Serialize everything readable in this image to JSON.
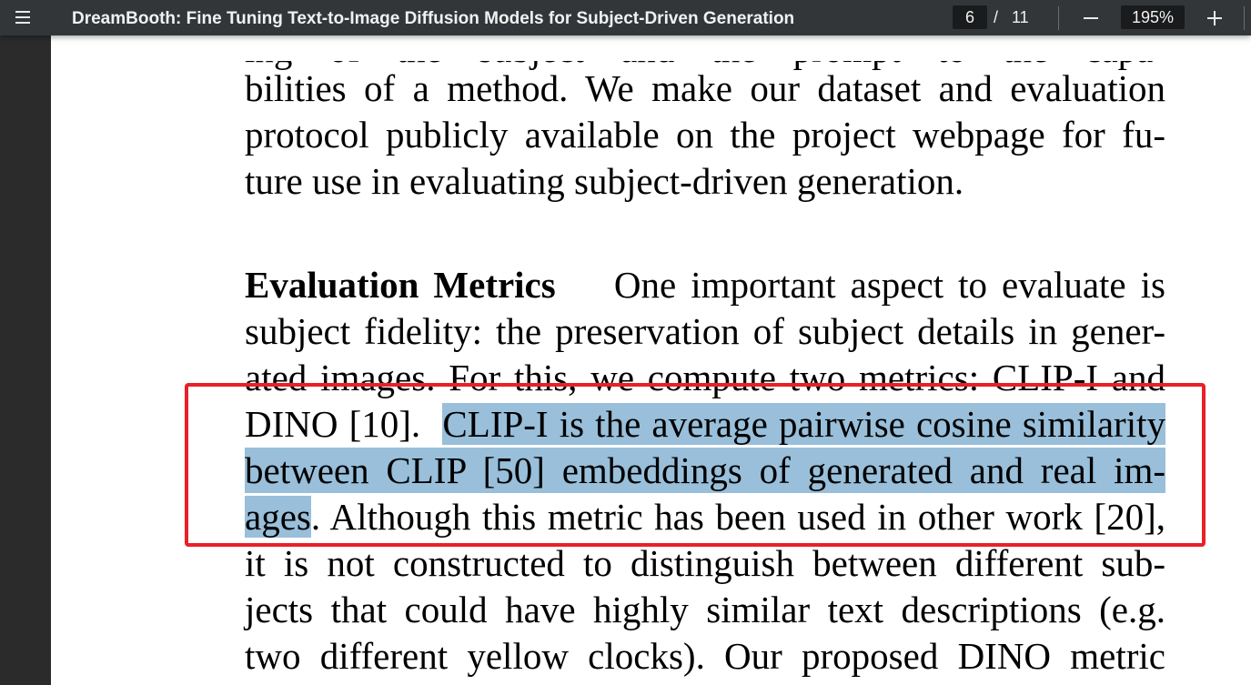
{
  "toolbar": {
    "title": "DreamBooth: Fine Tuning Text-to-Image Diffusion Models for Subject-Driven Generation",
    "page_current": "6",
    "page_separator": "/",
    "page_total": "11",
    "zoom": "195%"
  },
  "document": {
    "line0": "ing of the subject and the prompt to the capa-",
    "line1": "bilities of a method. We make our dataset and evaluation",
    "line2": "protocol publicly available on the project webpage for fu-",
    "line3": "ture use in evaluating subject-driven generation.",
    "line4_heading": "Evaluation Metrics",
    "line4_rest": "One important aspect to evaluate is",
    "line5": "subject fidelity: the preservation of subject details in gener-",
    "line6": "ated images. For this, we compute two metrics: CLIP-I and",
    "line7_pre": "DINO [10].",
    "line7_hl": "CLIP-I is the average pairwise cosine similarity",
    "line8_hl": "between CLIP [50] embeddings of generated and real im-",
    "line9_hl": "ages",
    "line9_rest": ". Although this metric has been used in other work [20],",
    "line10": "it is not constructed to distinguish between different sub-",
    "line11": "jects that could have highly similar text descriptions (e.g.",
    "line12": "two different yellow clocks). Our proposed DINO metric"
  },
  "colors": {
    "toolbar_bg": "#323639",
    "highlight": "#99bfda",
    "annotation_box": "#e8202a"
  }
}
